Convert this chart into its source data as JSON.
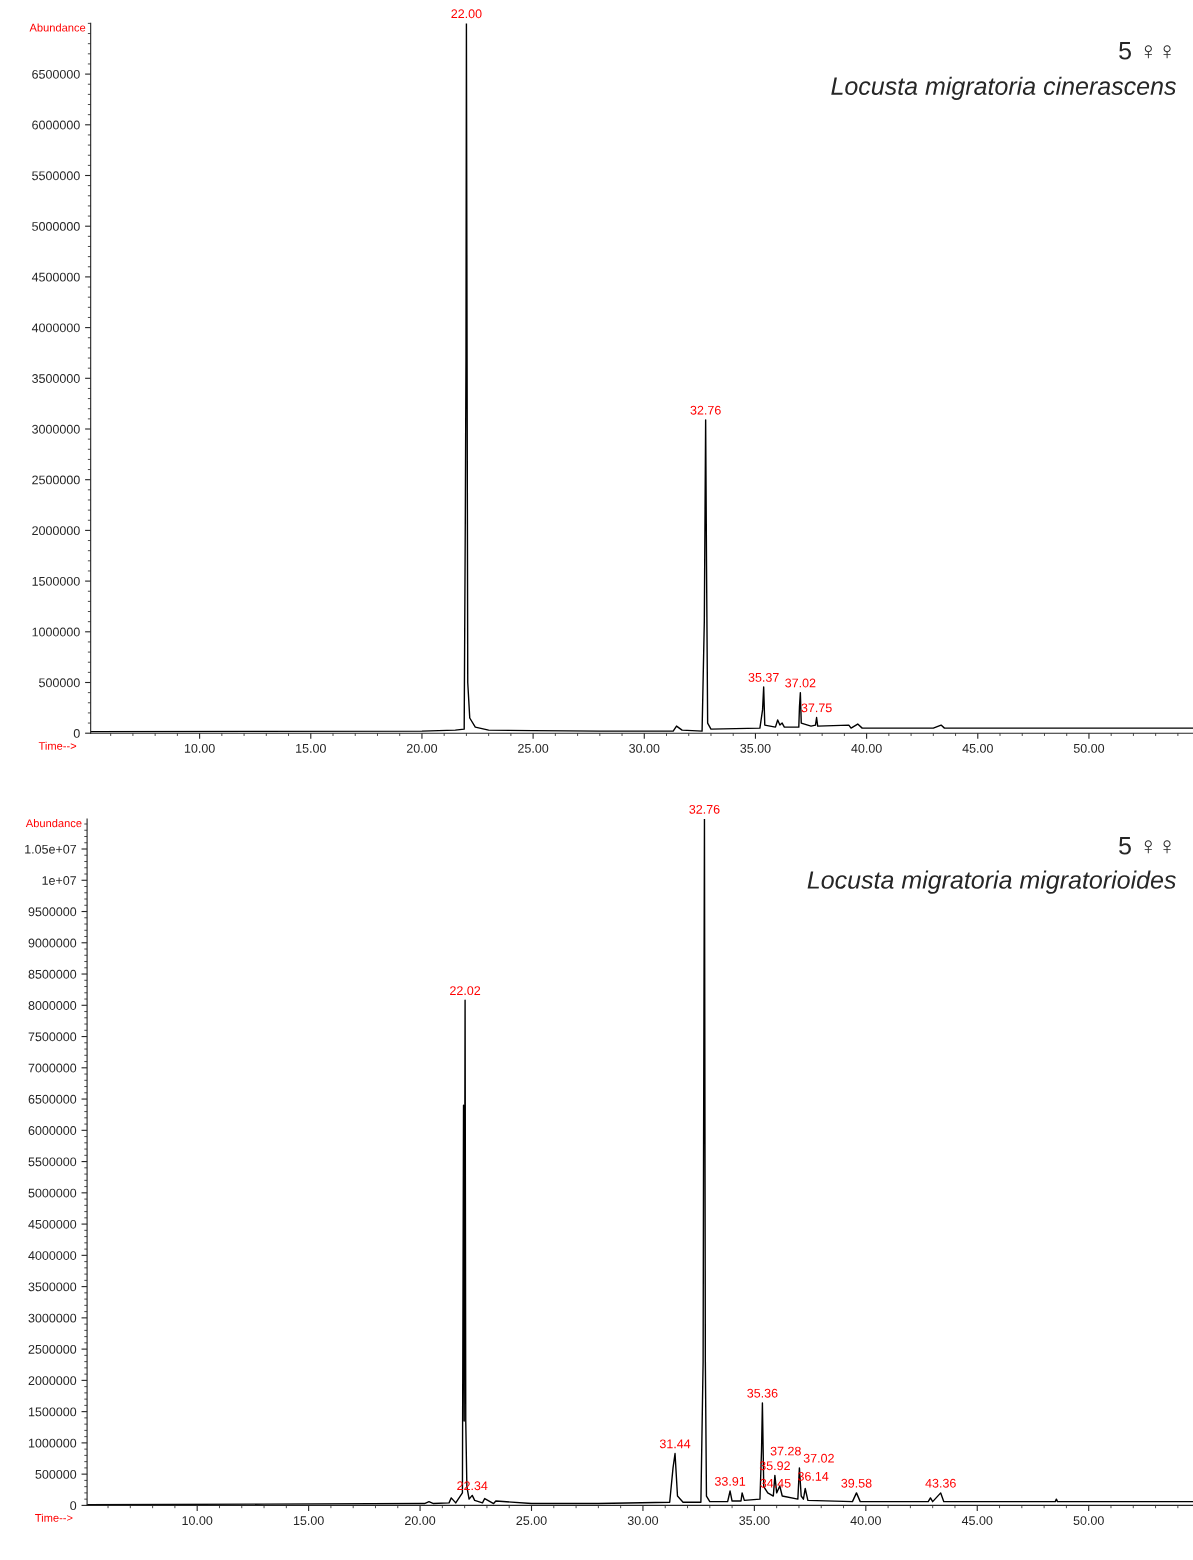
{
  "chart_data": [
    {
      "type": "line",
      "xlabel": "Time-->",
      "ylabel": "Abundance",
      "xlim": [
        5.1,
        54.68
      ],
      "ylim": [
        0,
        7000000
      ],
      "xticks": [
        {
          "value": 10,
          "label": "10.00"
        },
        {
          "value": 15,
          "label": "15.00"
        },
        {
          "value": 20,
          "label": "20.00"
        },
        {
          "value": 25,
          "label": "25.00"
        },
        {
          "value": 30,
          "label": "30.00"
        },
        {
          "value": 35,
          "label": "35.00"
        },
        {
          "value": 40,
          "label": "40.00"
        },
        {
          "value": 45,
          "label": "45.00"
        },
        {
          "value": 50,
          "label": "50.00"
        }
      ],
      "yticks": [
        0,
        500000,
        1000000,
        1500000,
        2000000,
        2500000,
        3000000,
        3500000,
        4000000,
        4500000,
        5000000,
        5500000,
        6000000,
        6500000
      ],
      "series": [
        {
          "color": "#000000",
          "x": [
            5.1,
            20,
            21.5,
            21.9,
            21.95,
            21.98,
            22.0,
            22.03,
            22.06,
            22.15,
            22.4,
            23,
            25,
            28,
            31.3,
            31.45,
            31.7,
            32.6,
            32.7,
            32.76,
            32.8,
            32.85,
            33.0,
            35.2,
            35.32,
            35.37,
            35.42,
            35.9,
            36.0,
            36.1,
            36.2,
            36.3,
            36.95,
            36.98,
            37.02,
            37.06,
            37.5,
            37.7,
            37.75,
            37.8,
            39.2,
            39.3,
            39.6,
            39.8,
            43.0,
            43.35,
            43.5,
            54.68
          ],
          "values": [
            15000,
            20000,
            30000,
            40000,
            2100000,
            3680000,
            7000000,
            3680000,
            500000,
            150000,
            60000,
            30000,
            25000,
            20000,
            20000,
            70000,
            30000,
            20000,
            1100000,
            3090000,
            1650000,
            100000,
            40000,
            50000,
            230000,
            455000,
            80000,
            60000,
            130000,
            80000,
            100000,
            60000,
            60000,
            260000,
            400000,
            100000,
            70000,
            80000,
            155000,
            70000,
            80000,
            50000,
            90000,
            50000,
            50000,
            80000,
            50000,
            50000
          ]
        }
      ],
      "annotations": [
        {
          "text": "22.00",
          "x": 22.0,
          "y": 7000000
        },
        {
          "text": "32.76",
          "x": 32.76,
          "y": 3090000
        },
        {
          "text": "35.37",
          "x": 35.37,
          "y": 455000
        },
        {
          "text": "37.02",
          "x": 37.02,
          "y": 400000
        },
        {
          "text": "37.75",
          "x": 37.75,
          "y": 155000
        },
        "5 ♀♀",
        "Locusta migratoria cinerascens"
      ]
    },
    {
      "type": "line",
      "xlabel": "Time-->",
      "ylabel": "Abundance",
      "xlim": [
        5.06,
        54.68
      ],
      "ylim": [
        0,
        10980000
      ],
      "xticks": [
        {
          "value": 10,
          "label": "10.00"
        },
        {
          "value": 15,
          "label": "15.00"
        },
        {
          "value": 20,
          "label": "20.00"
        },
        {
          "value": 25,
          "label": "25.00"
        },
        {
          "value": 30,
          "label": "30.00"
        },
        {
          "value": 35,
          "label": "35.00"
        },
        {
          "value": 40,
          "label": "40.00"
        },
        {
          "value": 45,
          "label": "45.00"
        },
        {
          "value": 50,
          "label": "50.00"
        }
      ],
      "yticks": [
        0,
        500000,
        1000000,
        1500000,
        2000000,
        2500000,
        3000000,
        3500000,
        4000000,
        4500000,
        5000000,
        5500000,
        6000000,
        6500000,
        7000000,
        7500000,
        8000000,
        8500000,
        9000000,
        9500000,
        {
          "value": 10000000,
          "label": "1e+07"
        },
        {
          "value": 10500000,
          "label": "1.05e+07"
        }
      ],
      "series": [
        {
          "color": "#000000",
          "x": [
            5.06,
            13,
            20.2,
            20.4,
            20.6,
            21.3,
            21.4,
            21.6,
            21.9,
            21.95,
            21.98,
            22.02,
            22.05,
            22.1,
            22.2,
            22.34,
            22.45,
            22.8,
            22.9,
            23.3,
            23.4,
            25,
            28,
            31.2,
            31.35,
            31.44,
            31.55,
            31.8,
            32.6,
            32.7,
            32.72,
            32.76,
            32.8,
            32.85,
            33.0,
            33.8,
            33.91,
            34.0,
            34.4,
            34.45,
            34.55,
            35.25,
            35.32,
            35.36,
            35.42,
            35.6,
            35.85,
            35.92,
            36.0,
            36.14,
            36.25,
            36.95,
            37.02,
            37.1,
            37.2,
            37.28,
            37.4,
            39.4,
            39.58,
            39.75,
            42.8,
            42.9,
            43.0,
            43.36,
            43.5,
            48.5,
            48.55,
            48.6,
            54.68
          ],
          "values": [
            10000,
            20000,
            30000,
            60000,
            30000,
            40000,
            120000,
            40000,
            200000,
            6400000,
            1350000,
            8080000,
            1350000,
            300000,
            100000,
            160000,
            80000,
            40000,
            110000,
            30000,
            70000,
            30000,
            30000,
            50000,
            600000,
            830000,
            150000,
            50000,
            50000,
            2300000,
            5700000,
            10980000,
            2300000,
            150000,
            60000,
            60000,
            230000,
            70000,
            70000,
            200000,
            80000,
            100000,
            870000,
            1640000,
            300000,
            200000,
            150000,
            480000,
            200000,
            310000,
            150000,
            100000,
            600000,
            150000,
            100000,
            270000,
            80000,
            60000,
            200000,
            60000,
            60000,
            120000,
            60000,
            200000,
            60000,
            60000,
            100000,
            60000,
            60000
          ]
        }
      ],
      "annotations": [
        {
          "text": "22.02",
          "x": 22.02,
          "y": 8080000
        },
        {
          "text": "22.34",
          "x": 22.34,
          "y": 160000
        },
        {
          "text": "31.44",
          "x": 31.44,
          "y": 830000
        },
        {
          "text": "32.76",
          "x": 32.76,
          "y": 10980000
        },
        {
          "text": "33.91",
          "x": 33.91,
          "y": 230000
        },
        {
          "text": "34.45",
          "x": 34.45,
          "y": 200000
        },
        {
          "text": "35.36",
          "x": 35.36,
          "y": 1640000
        },
        {
          "text": "35.92",
          "x": 35.92,
          "y": 480000
        },
        {
          "text": "36.14",
          "x": 36.14,
          "y": 310000
        },
        {
          "text": "37.02",
          "x": 37.02,
          "y": 600000
        },
        {
          "text": "37.28",
          "x": 37.28,
          "y": 270000
        },
        {
          "text": "39.58",
          "x": 39.58,
          "y": 200000
        },
        {
          "text": "43.36",
          "x": 43.36,
          "y": 200000
        },
        "5 ♀♀",
        "Locusta migratoria migratorioides"
      ]
    }
  ]
}
